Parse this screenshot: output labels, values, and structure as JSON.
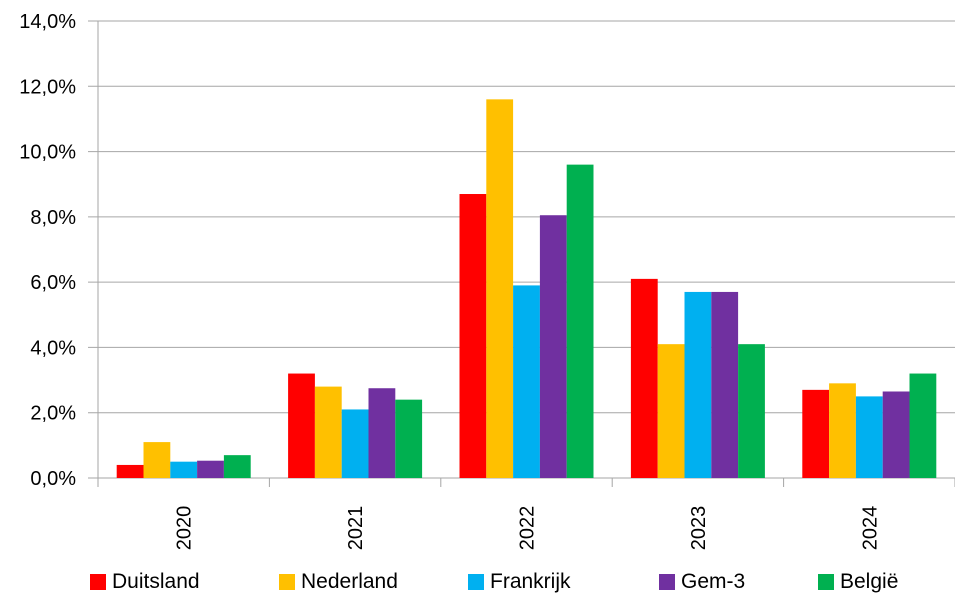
{
  "chart_data": {
    "type": "bar",
    "categories": [
      "2020",
      "2021",
      "2022",
      "2023",
      "2024"
    ],
    "series": [
      {
        "name": "Duitsland",
        "color": "#ff0000",
        "values": [
          0.4,
          3.2,
          8.7,
          6.1,
          2.7
        ]
      },
      {
        "name": "Nederland",
        "color": "#ffc000",
        "values": [
          1.1,
          2.8,
          11.6,
          4.1,
          2.9
        ]
      },
      {
        "name": "Frankrijk",
        "color": "#00b0f0",
        "values": [
          0.5,
          2.1,
          5.9,
          5.7,
          2.5
        ]
      },
      {
        "name": "Gem-3",
        "color": "#7030a0",
        "values": [
          0.53,
          2.75,
          8.05,
          5.7,
          2.65
        ]
      },
      {
        "name": "België",
        "color": "#00b050",
        "values": [
          0.7,
          2.4,
          9.6,
          4.1,
          3.2
        ]
      }
    ],
    "y_ticks": [
      "0,0%",
      "2,0%",
      "4,0%",
      "6,0%",
      "8,0%",
      "10,0%",
      "12,0%",
      "14,0%"
    ],
    "ylim": [
      0,
      14
    ],
    "y_step": 2,
    "grid": "horizontal",
    "legend": "bottom",
    "x_labels_rotated": true,
    "colors": {
      "grid": "#a6a6a6",
      "axis": "#a6a6a6"
    }
  }
}
